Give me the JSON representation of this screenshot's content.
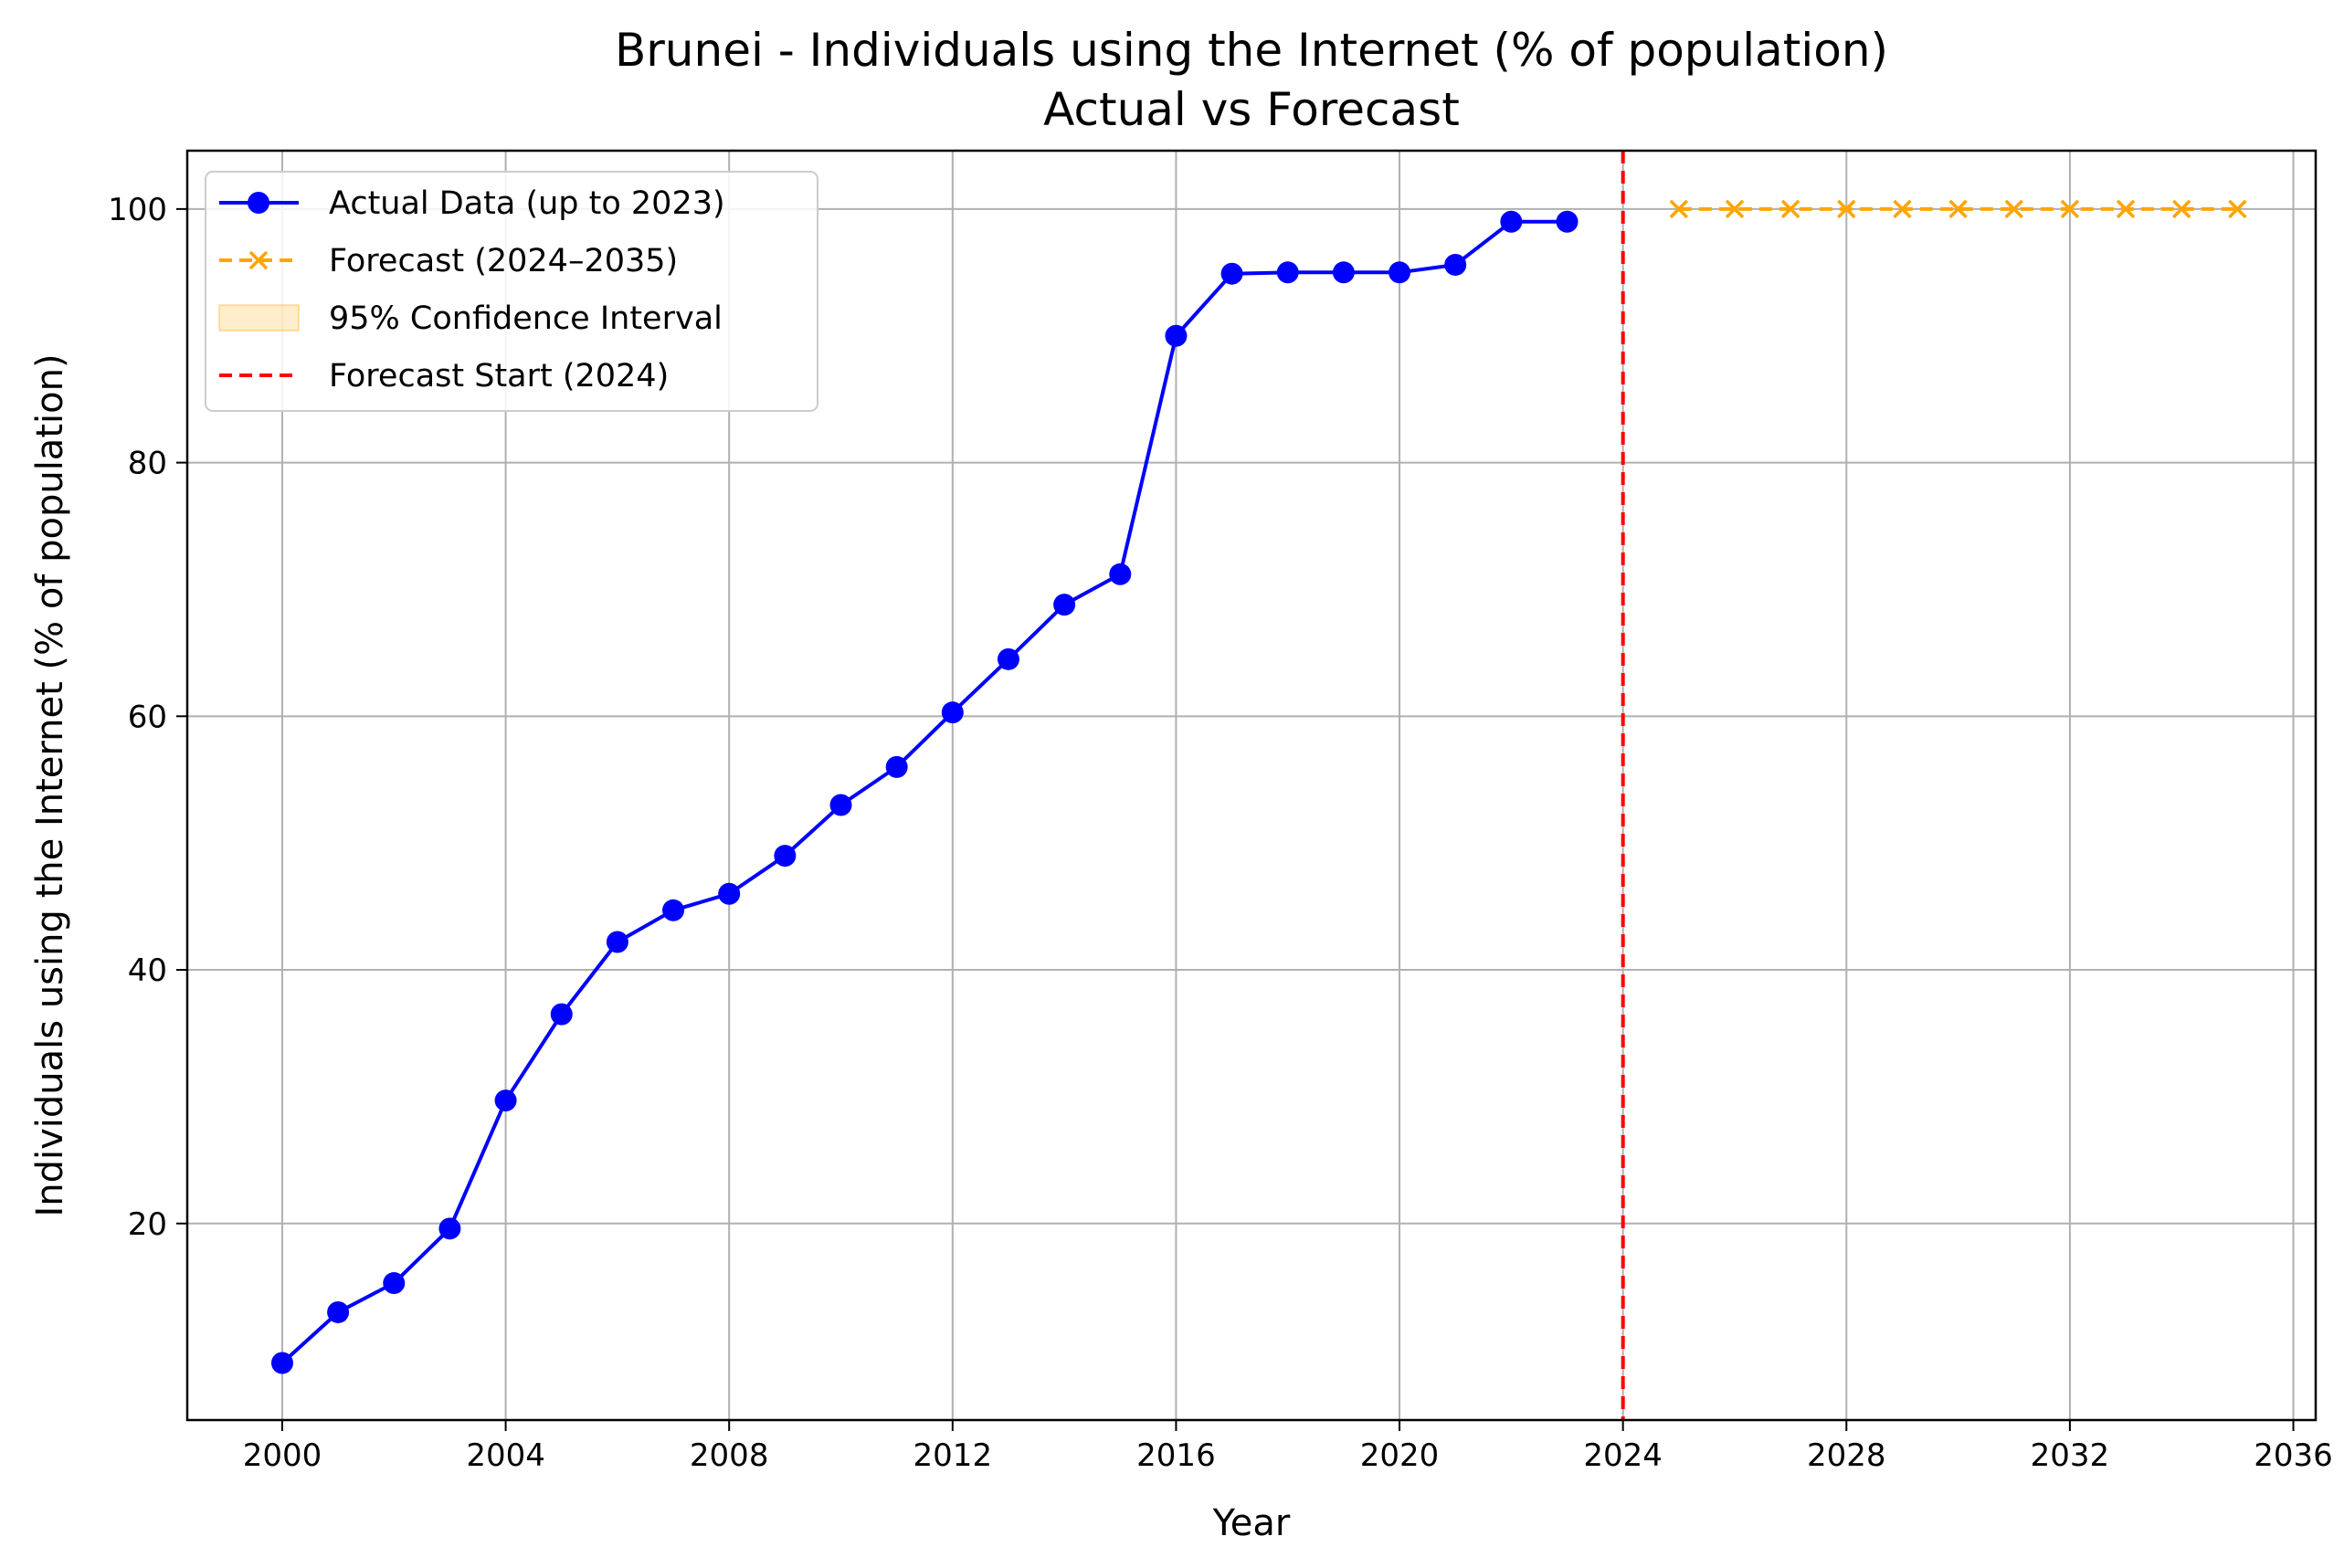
{
  "chart_data": {
    "type": "line",
    "title": "Brunei - Individuals using the Internet (% of population)",
    "subtitle": "Actual vs Forecast",
    "xlabel": "Year",
    "ylabel": "Individuals using the Internet (% of population)",
    "xlim": [
      1998.3,
      2036.4
    ],
    "ylim": [
      4.5,
      104.6
    ],
    "xticks": [
      2000,
      2004,
      2008,
      2012,
      2016,
      2020,
      2024,
      2028,
      2032,
      2036
    ],
    "yticks": [
      20,
      40,
      60,
      80,
      100
    ],
    "grid": true,
    "legend_position": "upper-left",
    "series": [
      {
        "name": "Actual Data (up to 2023)",
        "color": "#0000ff",
        "style": "solid",
        "marker": "circle",
        "x": [
          2000,
          2001,
          2002,
          2003,
          2004,
          2005,
          2006,
          2007,
          2008,
          2009,
          2010,
          2011,
          2012,
          2013,
          2014,
          2015,
          2016,
          2017,
          2018,
          2019,
          2020,
          2021,
          2022,
          2023
        ],
        "y": [
          9.0,
          13.0,
          15.3,
          19.6,
          29.7,
          36.5,
          42.2,
          44.7,
          46.0,
          49.0,
          53.0,
          56.0,
          60.3,
          64.5,
          68.8,
          71.2,
          90.0,
          94.9,
          95.0,
          95.0,
          95.0,
          95.6,
          99.0,
          99.0
        ]
      },
      {
        "name": "Forecast (2024–2035)",
        "color": "#ffa500",
        "style": "dashed",
        "marker": "x",
        "x": [
          2025,
          2026,
          2027,
          2028,
          2029,
          2030,
          2031,
          2032,
          2033,
          2034,
          2035
        ],
        "y": [
          100,
          100,
          100,
          100,
          100,
          100,
          100,
          100,
          100,
          100,
          100
        ]
      }
    ],
    "confidence_interval": {
      "name": "95% Confidence Interval",
      "color": "#ffa500"
    },
    "vline": {
      "name": "Forecast Start (2024)",
      "x": 2024,
      "color": "#ff0000",
      "style": "dashed"
    }
  }
}
